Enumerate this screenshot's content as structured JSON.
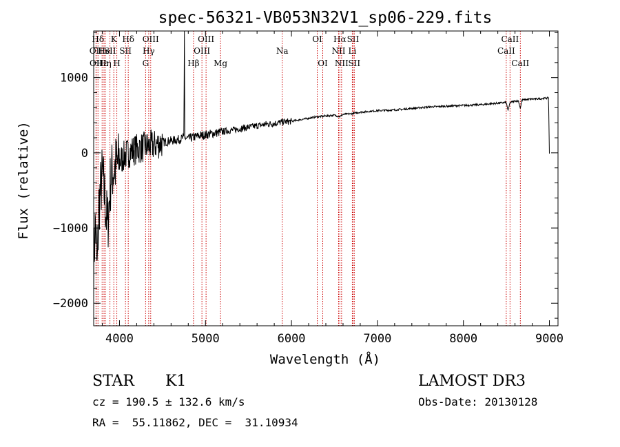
{
  "chart_data": {
    "type": "line",
    "title": "spec-56321-VB053N32V1_sp06-229.fits",
    "xlabel": "Wavelength (Å)",
    "ylabel": "Flux (relative)",
    "xlim": [
      3700,
      9100
    ],
    "ylim": [
      -2300,
      1620
    ],
    "xticks": [
      4000,
      5000,
      6000,
      7000,
      8000,
      9000
    ],
    "xtick_labels": [
      "4000",
      "5000",
      "6000",
      "7000",
      "8000",
      "9000"
    ],
    "yticks": [
      -2000,
      -1000,
      0,
      1000
    ],
    "ytick_labels": [
      "−2000",
      "−1000",
      "0",
      "1000"
    ],
    "series": [
      {
        "name": "flux",
        "x": [
          3700,
          3720,
          3740,
          3760,
          3780,
          3800,
          3830,
          3860,
          3900,
          3940,
          3980,
          4050,
          4100,
          4150,
          4200,
          4300,
          4400,
          4500,
          4600,
          4700,
          4749,
          4755,
          4760,
          4800,
          4900,
          5000,
          5100,
          5200,
          5300,
          5400,
          5500,
          5600,
          5700,
          5800,
          5900,
          6000,
          6100,
          6200,
          6300,
          6400,
          6500,
          6562,
          6600,
          6700,
          6800,
          6900,
          7000,
          7200,
          7400,
          7600,
          7800,
          8000,
          8200,
          8400,
          8498,
          8520,
          8542,
          8560,
          8600,
          8640,
          8662,
          8680,
          8700,
          8800,
          8900,
          8990,
          9000
        ],
        "y": [
          -1500,
          -900,
          -1600,
          -700,
          -500,
          -300,
          -600,
          -1000,
          -300,
          -200,
          -150,
          -50,
          0,
          30,
          50,
          80,
          100,
          140,
          160,
          180,
          200,
          1620,
          200,
          190,
          220,
          240,
          260,
          280,
          300,
          320,
          340,
          360,
          380,
          390,
          410,
          420,
          440,
          460,
          480,
          490,
          500,
          480,
          510,
          520,
          540,
          550,
          560,
          570,
          590,
          610,
          620,
          630,
          640,
          660,
          670,
          560,
          670,
          675,
          690,
          690,
          590,
          700,
          705,
          715,
          720,
          730,
          -10
        ]
      }
    ],
    "lines": [
      {
        "label": "Hδ",
        "wl": 3750,
        "row": 1
      },
      {
        "label": "OII",
        "wl": 3727,
        "row": 2
      },
      {
        "label": "OII",
        "wl": 3729,
        "row": 3
      },
      {
        "label": "Hε",
        "wl": 3798,
        "row": 3
      },
      {
        "label": "He",
        "wl": 3820,
        "row": 2
      },
      {
        "label": "Hη",
        "wl": 3835,
        "row": 3
      },
      {
        "label": "K",
        "wl": 3934,
        "row": 1
      },
      {
        "label": "SII",
        "wl": 3889,
        "row": 2
      },
      {
        "label": "H",
        "wl": 3969,
        "row": 3
      },
      {
        "label": "Hδ",
        "wl": 4102,
        "row": 1
      },
      {
        "label": "SII",
        "wl": 4070,
        "row": 2
      },
      {
        "label": "OIII",
        "wl": 4363,
        "row": 1
      },
      {
        "label": "Hγ",
        "wl": 4340,
        "row": 2
      },
      {
        "label": "G",
        "wl": 4304,
        "row": 3
      },
      {
        "label": "Hβ",
        "wl": 4861,
        "row": 3
      },
      {
        "label": "OIII",
        "wl": 5007,
        "row": 1
      },
      {
        "label": "OIII",
        "wl": 4959,
        "row": 2
      },
      {
        "label": "Mg",
        "wl": 5175,
        "row": 3
      },
      {
        "label": "Na",
        "wl": 5893,
        "row": 2
      },
      {
        "label": "OI",
        "wl": 6300,
        "row": 1
      },
      {
        "label": "OI",
        "wl": 6364,
        "row": 3
      },
      {
        "label": "Hα",
        "wl": 6563,
        "row": 1
      },
      {
        "label": "NII",
        "wl": 6548,
        "row": 2
      },
      {
        "label": "NII",
        "wl": 6583,
        "row": 3
      },
      {
        "label": "SII",
        "wl": 6716,
        "row": 1
      },
      {
        "label": "Li",
        "wl": 6708,
        "row": 2
      },
      {
        "label": "SII",
        "wl": 6731,
        "row": 3
      },
      {
        "label": "CaII",
        "wl": 8542,
        "row": 1
      },
      {
        "label": "CaII",
        "wl": 8498,
        "row": 2
      },
      {
        "label": "CaII",
        "wl": 8662,
        "row": 3
      }
    ],
    "line_color": "#cc0000"
  },
  "info": {
    "class_label": "STAR",
    "subclass": "K1",
    "cz": "cz = 190.5 ± 132.6 km/s",
    "coords": "RA =  55.11862, DEC =  31.10934",
    "survey": "LAMOST DR3",
    "obs_date": "Obs-Date: 20130128"
  }
}
